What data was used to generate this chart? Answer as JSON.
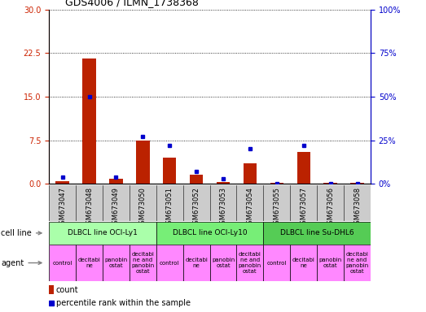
{
  "title": "GDS4006 / ILMN_1738368",
  "samples": [
    "GSM673047",
    "GSM673048",
    "GSM673049",
    "GSM673050",
    "GSM673051",
    "GSM673052",
    "GSM673053",
    "GSM673054",
    "GSM673055",
    "GSM673057",
    "GSM673056",
    "GSM673058"
  ],
  "counts": [
    0.5,
    21.5,
    0.8,
    7.5,
    4.5,
    1.5,
    0.3,
    3.5,
    0.2,
    5.5,
    0.1,
    0.1
  ],
  "percentiles": [
    4,
    50,
    4,
    27,
    22,
    7,
    3,
    20,
    0,
    22,
    0,
    0
  ],
  "ylim_left": [
    0,
    30
  ],
  "ylim_right": [
    0,
    100
  ],
  "yticks_left": [
    0,
    7.5,
    15,
    22.5,
    30
  ],
  "yticks_right": [
    0,
    25,
    50,
    75,
    100
  ],
  "bar_color": "#bb2200",
  "dot_color": "#0000cc",
  "cell_lines": [
    {
      "label": "DLBCL line OCI-Ly1",
      "span": [
        0,
        4
      ],
      "color": "#aaffaa"
    },
    {
      "label": "DLBCL line OCI-Ly10",
      "span": [
        4,
        8
      ],
      "color": "#77ee77"
    },
    {
      "label": "DLBCL line Su-DHL6",
      "span": [
        8,
        12
      ],
      "color": "#55cc55"
    }
  ],
  "agents": [
    {
      "label": "control",
      "span": [
        0,
        1
      ]
    },
    {
      "label": "decitabi\nne",
      "span": [
        1,
        2
      ]
    },
    {
      "label": "panobin\nostat",
      "span": [
        2,
        3
      ]
    },
    {
      "label": "decitabi\nne and\npanobin\nostat",
      "span": [
        3,
        4
      ]
    },
    {
      "label": "control",
      "span": [
        4,
        5
      ]
    },
    {
      "label": "decitabi\nne",
      "span": [
        5,
        6
      ]
    },
    {
      "label": "panobin\nostat",
      "span": [
        6,
        7
      ]
    },
    {
      "label": "decitabi\nne and\npanobin\nostat",
      "span": [
        7,
        8
      ]
    },
    {
      "label": "control",
      "span": [
        8,
        9
      ]
    },
    {
      "label": "decitabi\nne",
      "span": [
        9,
        10
      ]
    },
    {
      "label": "panobin\nostat",
      "span": [
        10,
        11
      ]
    },
    {
      "label": "decitabi\nne and\npanobin\nostat",
      "span": [
        11,
        12
      ]
    }
  ],
  "agent_color": "#ff88ff",
  "row_label_cell_line": "cell line",
  "row_label_agent": "agent",
  "legend_count_label": "count",
  "legend_percentile_label": "percentile rank within the sample",
  "tick_color_left": "#cc2200",
  "tick_color_right": "#0000cc",
  "xticklabel_bg": "#cccccc",
  "title_fontsize": 9,
  "bar_width": 0.5
}
